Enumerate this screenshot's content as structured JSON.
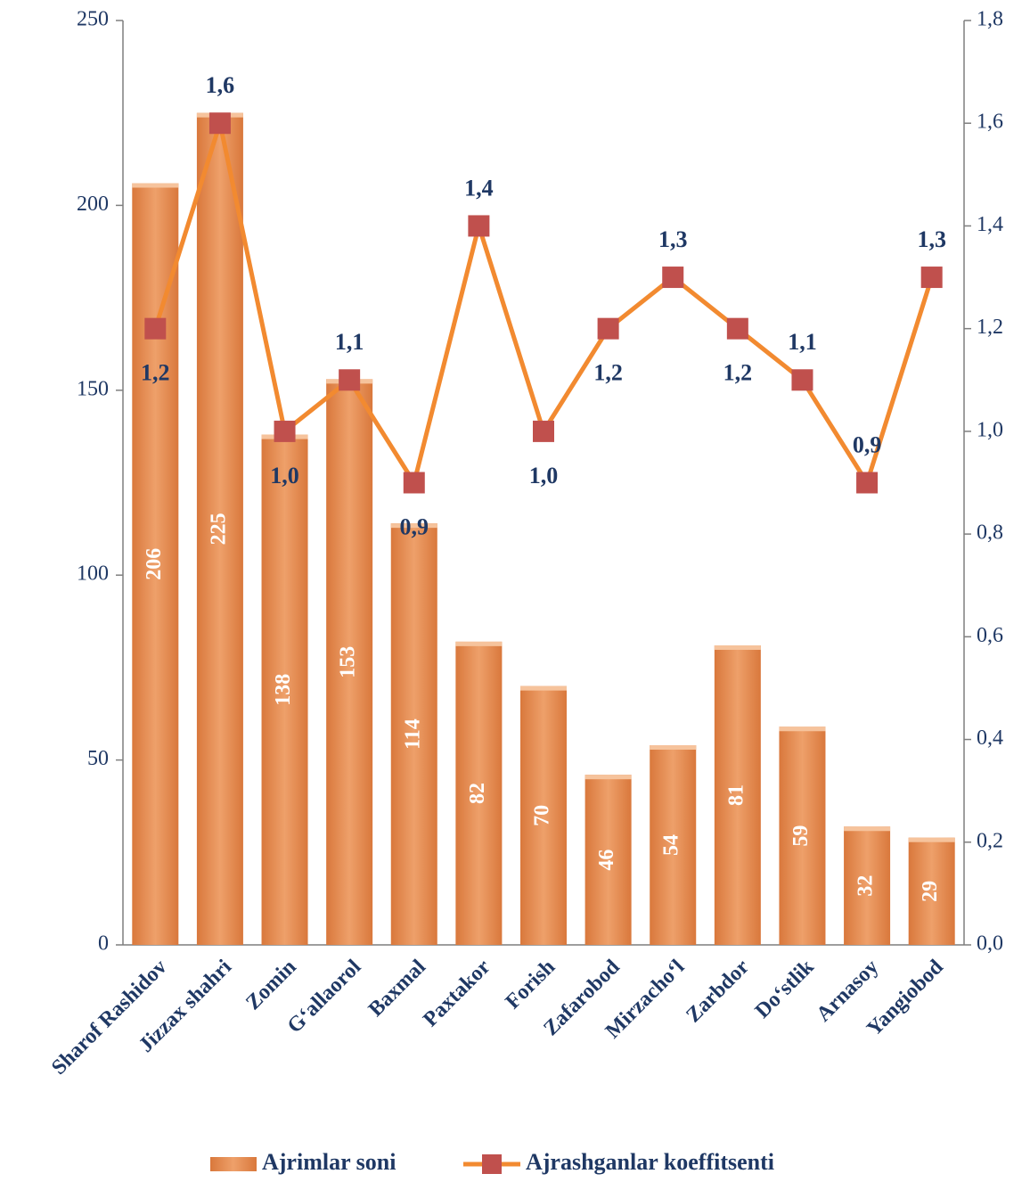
{
  "chart_data": {
    "type": "bar_line",
    "categories": [
      "Sharof Rashidov",
      "Jizzax shahri",
      "Zomin",
      "G‘allaorol",
      "Baxmal",
      "Paxtakor",
      "Forish",
      "Zafarobod",
      "Mirzacho‘l",
      "Zarbdor",
      "Do‘stlik",
      "Arnasoy",
      "Yangiobod"
    ],
    "series": [
      {
        "name": "Ajrimlar soni",
        "type": "bar",
        "color": "#e8955a",
        "values": [
          206,
          225,
          138,
          153,
          114,
          82,
          70,
          46,
          54,
          81,
          59,
          32,
          29
        ]
      },
      {
        "name": "Ajrashganlar koeffitsenti",
        "type": "line",
        "axis": "y2",
        "color": "#f28a30",
        "marker_color": "#c0504d",
        "values": [
          1.2,
          1.6,
          1.0,
          1.1,
          0.9,
          1.4,
          1.0,
          1.2,
          1.3,
          1.2,
          1.1,
          0.9,
          1.3
        ],
        "value_labels": [
          "1,2",
          "1,6",
          "1,0",
          "1,1",
          "0,9",
          "1,4",
          "1,0",
          "1,2",
          "1,3",
          "1,2",
          "1,1",
          "0,9",
          "1,3"
        ]
      }
    ],
    "ylim": [
      0,
      250
    ],
    "yticks": [
      0,
      50,
      100,
      150,
      200,
      250
    ],
    "y2lim": [
      0,
      1.8
    ],
    "y2ticks": [
      {
        "value": 0,
        "label": "0,0"
      },
      {
        "value": 0.2,
        "label": "0,2"
      },
      {
        "value": 0.4,
        "label": "0,4"
      },
      {
        "value": 0.6,
        "label": "0,6"
      },
      {
        "value": 0.8,
        "label": "0,8"
      },
      {
        "value": 1.0,
        "label": "1,0"
      },
      {
        "value": 1.2,
        "label": "1,2"
      },
      {
        "value": 1.4,
        "label": "1,4"
      },
      {
        "value": 1.6,
        "label": "1,6"
      },
      {
        "value": 1.8,
        "label": "1,8"
      }
    ],
    "legend": "bottom"
  }
}
